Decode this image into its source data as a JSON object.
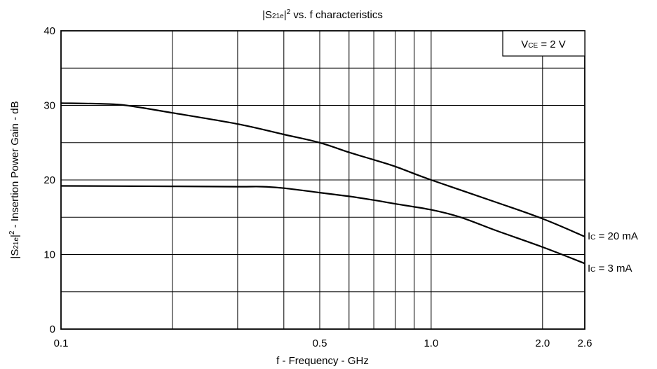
{
  "chart_data": {
    "type": "line",
    "title": {
      "pre": "|S",
      "sub": "21e",
      "mid": "|",
      "sup": "2",
      "post": " vs. f  characteristics"
    },
    "xlabel": "f - Frequency - GHz",
    "ylabel": {
      "pre": "|S",
      "sub": "21e",
      "mid": "|",
      "sup": "2",
      "post": " - Insertion Power Gain - dB"
    },
    "x_scale": "log",
    "xlim": [
      0.1,
      2.6
    ],
    "ylim": [
      0,
      40
    ],
    "x_ticks": [
      {
        "value": 0.1,
        "label": "0.1"
      },
      {
        "value": 0.5,
        "label": "0.5"
      },
      {
        "value": 1.0,
        "label": "1.0"
      },
      {
        "value": 2.0,
        "label": "2.0"
      },
      {
        "value": 2.6,
        "label": "2.6"
      }
    ],
    "x_gridlines": [
      0.2,
      0.3,
      0.4,
      0.5,
      0.6,
      0.7,
      0.8,
      0.9,
      1.0,
      2.0
    ],
    "y_ticks": [
      0,
      10,
      20,
      30,
      40
    ],
    "y_gridlines": [
      5,
      10,
      15,
      20,
      25,
      30,
      35
    ],
    "grid": true,
    "condition": {
      "pre": "V",
      "sub": "CE",
      "post": " = 2 V",
      "placement": "top-right"
    },
    "series": [
      {
        "name": {
          "pre": "I",
          "sub": "C",
          "post": " = 20 mA"
        },
        "x": [
          0.1,
          0.13,
          0.15,
          0.2,
          0.3,
          0.4,
          0.5,
          0.6,
          0.7,
          0.8,
          1.0,
          1.5,
          2.0,
          2.6
        ],
        "y": [
          30.3,
          30.2,
          30.0,
          29.0,
          27.5,
          26.1,
          25.0,
          23.7,
          22.7,
          21.8,
          20.0,
          17.0,
          14.8,
          12.4
        ]
      },
      {
        "name": {
          "pre": "I",
          "sub": "C",
          "post": " = 3 mA"
        },
        "x": [
          0.1,
          0.2,
          0.3,
          0.35,
          0.4,
          0.5,
          0.6,
          0.7,
          0.8,
          1.0,
          1.2,
          1.5,
          2.0,
          2.6
        ],
        "y": [
          19.2,
          19.15,
          19.1,
          19.1,
          18.9,
          18.3,
          17.8,
          17.3,
          16.8,
          16.0,
          15.0,
          13.2,
          11.0,
          8.8
        ]
      }
    ]
  }
}
